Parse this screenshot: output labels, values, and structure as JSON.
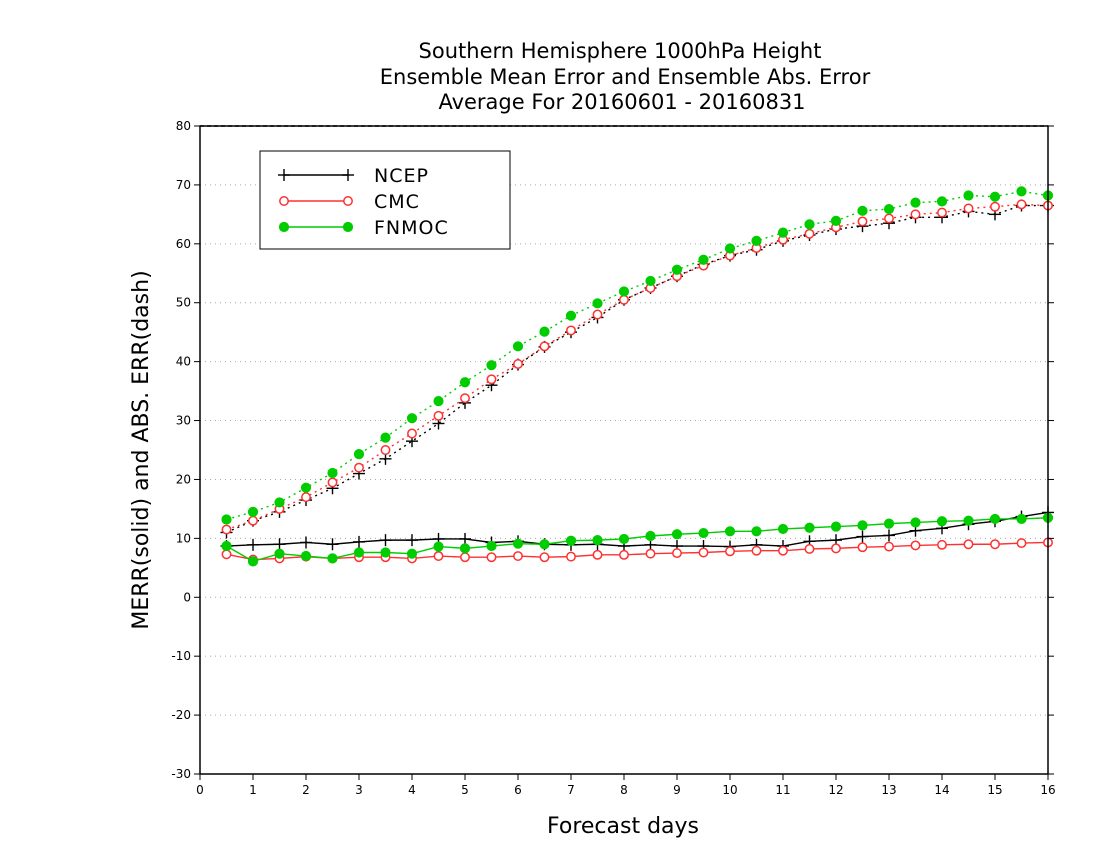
{
  "chart_data": {
    "type": "line",
    "title": [
      "Southern Hemisphere 1000hPa Height",
      "Ensemble Mean Error and Ensemble Abs. Error",
      "Average For 20160601 - 20160831"
    ],
    "xlabel": "Forecast days",
    "ylabel": "MERR(solid) and ABS. ERR(dash)",
    "xlim": [
      0,
      16
    ],
    "ylim": [
      -30,
      80
    ],
    "xticks": [
      0,
      1,
      2,
      3,
      4,
      5,
      6,
      7,
      8,
      9,
      10,
      11,
      12,
      13,
      14,
      15,
      16
    ],
    "yticks": [
      -30,
      -20,
      -10,
      0,
      10,
      20,
      30,
      40,
      50,
      60,
      70,
      80
    ],
    "grid": "horizontal dotted",
    "legend_position": "top-left",
    "x": [
      0.5,
      1,
      1.5,
      2,
      2.5,
      3,
      3.5,
      4,
      4.5,
      5,
      5.5,
      6,
      6.5,
      7,
      7.5,
      8,
      8.5,
      9,
      9.5,
      10,
      10.5,
      11,
      11.5,
      12,
      12.5,
      13,
      13.5,
      14,
      14.5,
      15,
      15.5,
      16
    ],
    "series": [
      {
        "name": "NCEP",
        "color": "#000000",
        "marker": "plus",
        "merr": [
          8.7,
          8.9,
          9.0,
          9.3,
          9.0,
          9.4,
          9.7,
          9.7,
          9.9,
          9.9,
          9.3,
          9.5,
          9.0,
          8.9,
          9.0,
          8.7,
          8.9,
          8.7,
          8.7,
          8.6,
          8.9,
          8.7,
          9.5,
          9.7,
          10.3,
          10.5,
          11.3,
          11.7,
          12.4,
          12.9,
          13.7,
          14.4
        ],
        "abs_err": [
          11.0,
          13.0,
          14.5,
          16.5,
          18.5,
          21.0,
          23.5,
          26.5,
          29.5,
          33.0,
          36.0,
          39.5,
          42.5,
          45.0,
          47.5,
          50.5,
          52.5,
          54.5,
          56.5,
          58.0,
          59.0,
          60.5,
          61.5,
          62.5,
          63.0,
          63.5,
          64.5,
          64.5,
          65.5,
          65.0,
          66.5,
          66.5
        ]
      },
      {
        "name": "CMC",
        "color": "#ff3030",
        "marker": "open-circle",
        "merr": [
          7.3,
          6.4,
          6.6,
          6.9,
          6.6,
          6.8,
          6.8,
          6.6,
          7.0,
          6.8,
          6.8,
          7.0,
          6.8,
          6.9,
          7.2,
          7.2,
          7.4,
          7.5,
          7.6,
          7.8,
          7.9,
          7.9,
          8.2,
          8.3,
          8.5,
          8.6,
          8.8,
          8.9,
          9.0,
          9.0,
          9.2,
          9.3
        ],
        "abs_err": [
          11.5,
          13.0,
          15.0,
          17.0,
          19.5,
          22.0,
          25.0,
          27.8,
          30.8,
          33.8,
          37.0,
          39.6,
          42.6,
          45.3,
          48.0,
          50.5,
          52.5,
          54.5,
          56.3,
          58.0,
          59.3,
          60.7,
          61.7,
          62.8,
          63.8,
          64.3,
          65.0,
          65.3,
          66.0,
          66.3,
          66.7,
          66.5
        ]
      },
      {
        "name": "FNMOC",
        "color": "#00cc00",
        "marker": "filled-circle",
        "merr": [
          8.7,
          6.1,
          7.4,
          7.0,
          6.6,
          7.6,
          7.6,
          7.4,
          8.6,
          8.3,
          8.7,
          9.1,
          9.0,
          9.6,
          9.7,
          9.9,
          10.4,
          10.7,
          10.9,
          11.2,
          11.2,
          11.6,
          11.8,
          12.0,
          12.2,
          12.5,
          12.7,
          12.9,
          13.0,
          13.3,
          13.3,
          13.5
        ],
        "abs_err": [
          13.2,
          14.5,
          16.1,
          18.6,
          21.1,
          24.3,
          27.1,
          30.4,
          33.3,
          36.5,
          39.4,
          42.6,
          45.1,
          47.8,
          49.9,
          51.9,
          53.7,
          55.6,
          57.3,
          59.2,
          60.5,
          61.9,
          63.3,
          63.9,
          65.6,
          65.9,
          67.0,
          67.2,
          68.2,
          68.0,
          68.9,
          68.2
        ]
      }
    ]
  }
}
